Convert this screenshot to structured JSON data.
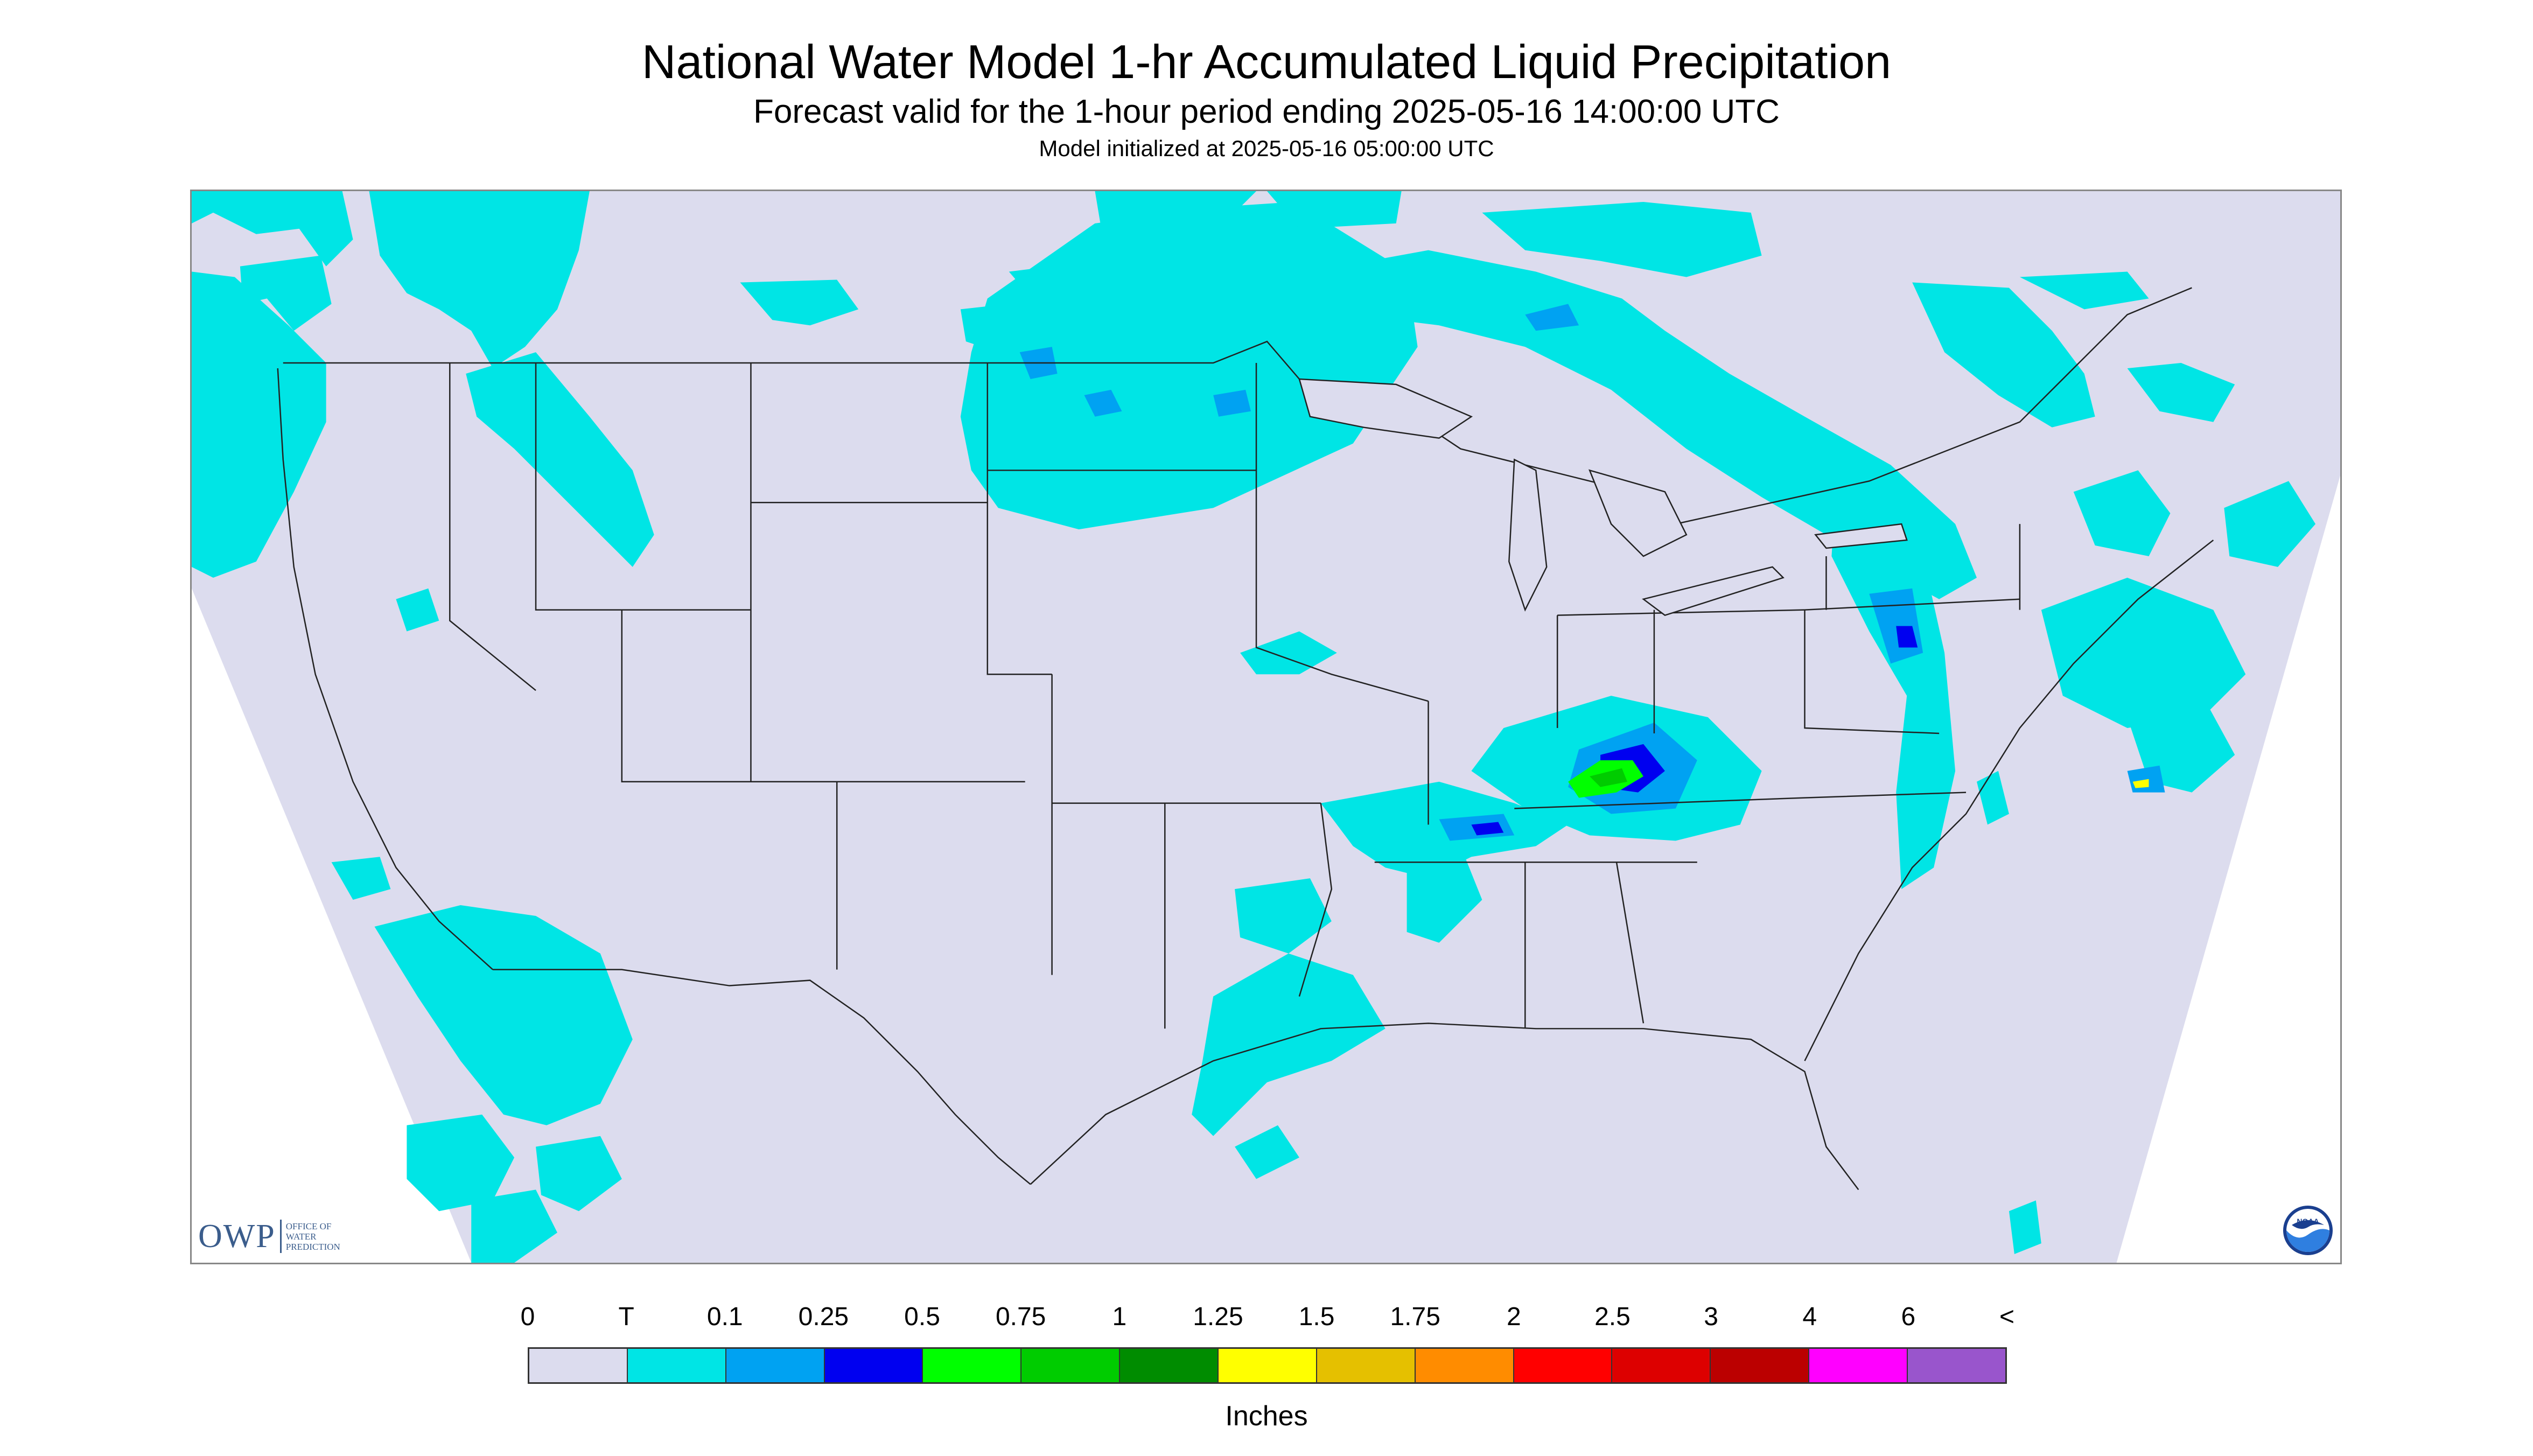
{
  "header": {
    "title": "National Water Model 1-hr Accumulated Liquid Precipitation",
    "subtitle": "Forecast valid for the 1-hour period ending 2025-05-16 14:00:00 UTC",
    "init": "Model initialized at 2025-05-16 05:00:00 UTC"
  },
  "logos": {
    "owp_word": "OWP",
    "owp_sub_1": "Office of",
    "owp_sub_2": "Water",
    "owp_sub_3": "Prediction",
    "noaa_text": "NOAA"
  },
  "map": {
    "region": "CONUS",
    "background_color": "#dcdcee",
    "outside_color": "#ffffff",
    "border_color": "#222222"
  },
  "legend": {
    "labels": [
      "0",
      "T",
      "0.1",
      "0.25",
      "0.5",
      "0.75",
      "1",
      "1.25",
      "1.5",
      "1.75",
      "2",
      "2.5",
      "3",
      "4",
      "6",
      "<"
    ],
    "colors": [
      "#dcdcee",
      "#00e5e5",
      "#00a2f2",
      "#0000f0",
      "#00ff00",
      "#00cc00",
      "#008c00",
      "#ffff00",
      "#e5c000",
      "#ff8c00",
      "#ff0000",
      "#dd0000",
      "#bb0000",
      "#ff00ff",
      "#9955cc"
    ],
    "units": "Inches"
  }
}
